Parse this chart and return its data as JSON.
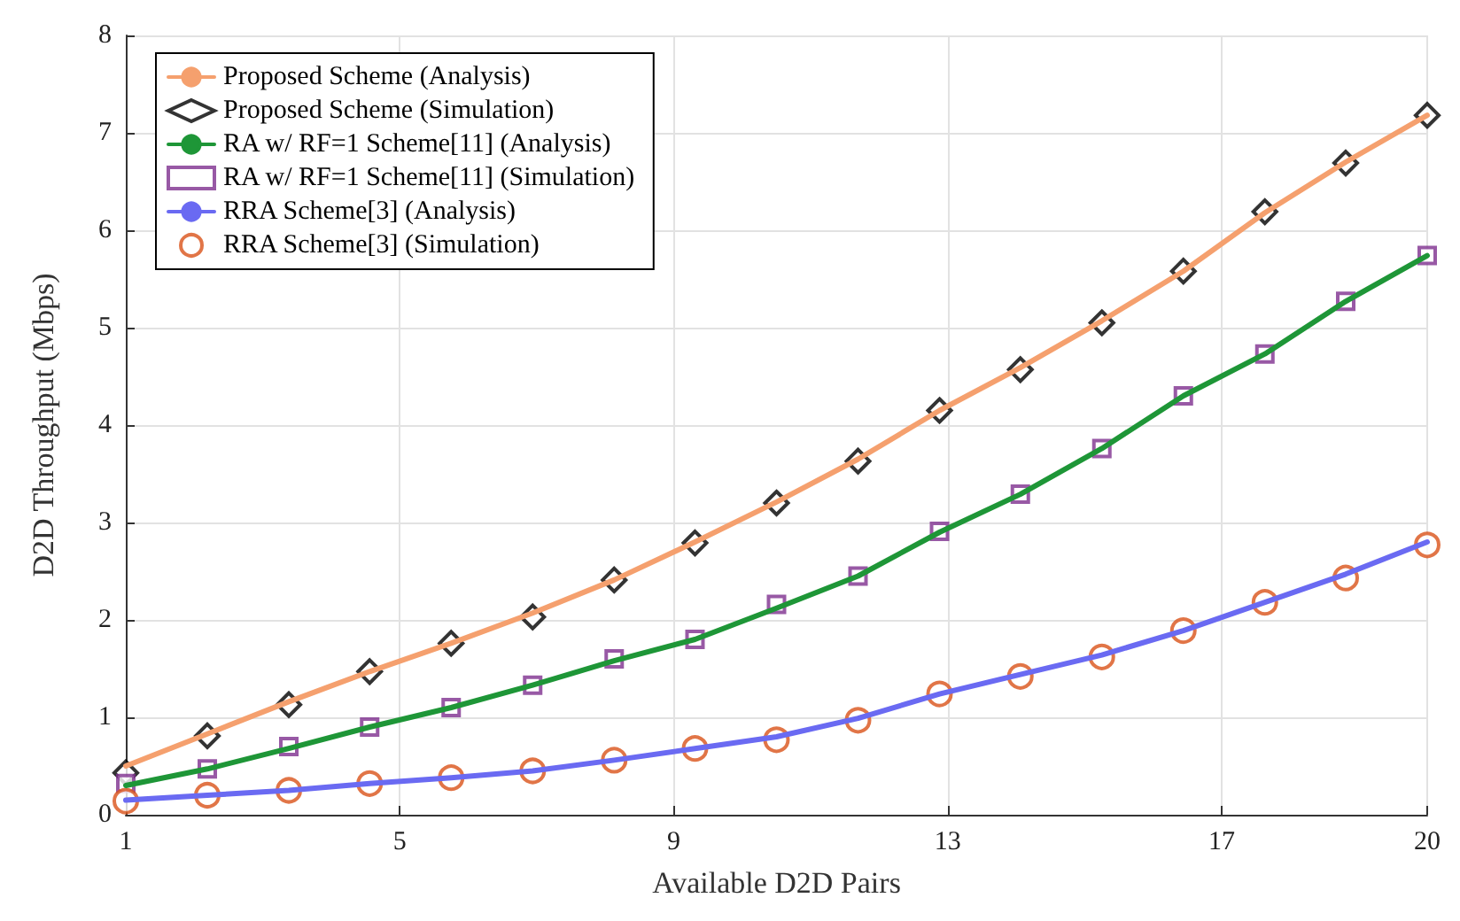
{
  "chart_data": {
    "type": "line",
    "xlabel": "Available D2D Pairs",
    "ylabel": "D2D Throughput (Mbps)",
    "x": [
      1,
      2.19,
      3.38,
      4.56,
      5.75,
      6.94,
      8.13,
      9.31,
      10.5,
      11.69,
      12.88,
      14.06,
      15.25,
      16.44,
      17.63,
      18.81,
      20
    ],
    "series": [
      {
        "name": "Proposed Scheme (Analysis)",
        "marker": "none",
        "color": "#f5a06e",
        "values": [
          0.5,
          0.83,
          1.16,
          1.47,
          1.76,
          2.07,
          2.41,
          2.8,
          3.21,
          3.65,
          4.15,
          4.59,
          5.07,
          5.58,
          6.18,
          6.7,
          7.18
        ]
      },
      {
        "name": "Proposed Scheme (Simulation)",
        "type": "scatter",
        "marker": "diamond",
        "color": "#000000",
        "values": [
          0.43,
          0.81,
          1.13,
          1.47,
          1.76,
          2.03,
          2.41,
          2.79,
          3.2,
          3.63,
          4.15,
          4.57,
          5.05,
          5.58,
          6.19,
          6.69,
          7.18
        ]
      },
      {
        "name": "RA w/ RF=1 Scheme[11] (Analysis)",
        "marker": "none",
        "color": "#1e9637",
        "values": [
          0.3,
          0.47,
          0.68,
          0.9,
          1.1,
          1.33,
          1.58,
          1.8,
          2.12,
          2.45,
          2.9,
          3.29,
          3.76,
          4.3,
          4.73,
          5.27,
          5.74
        ]
      },
      {
        "name": "RA w/ RF=1 Scheme[11] (Simulation)",
        "type": "scatter",
        "marker": "square",
        "color": "#7e2f8e",
        "values": [
          0.32,
          0.47,
          0.7,
          0.9,
          1.1,
          1.33,
          1.6,
          1.8,
          2.16,
          2.45,
          2.91,
          3.29,
          3.76,
          4.3,
          4.73,
          5.27,
          5.74
        ]
      },
      {
        "name": "RRA Scheme[3] (Analysis)",
        "marker": "none",
        "color": "#6a6af2",
        "values": [
          0.15,
          0.2,
          0.25,
          0.32,
          0.38,
          0.45,
          0.56,
          0.68,
          0.8,
          0.99,
          1.24,
          1.44,
          1.64,
          1.89,
          2.18,
          2.47,
          2.8
        ]
      },
      {
        "name": "RRA Scheme[3] (Simulation)",
        "type": "scatter",
        "marker": "circle",
        "color": "#d95319",
        "values": [
          0.14,
          0.2,
          0.25,
          0.32,
          0.38,
          0.45,
          0.56,
          0.68,
          0.77,
          0.97,
          1.24,
          1.42,
          1.62,
          1.89,
          2.18,
          2.43,
          2.77
        ]
      }
    ],
    "xlim": [
      1,
      20
    ],
    "xticks": [
      1,
      5,
      9,
      13,
      17,
      20
    ],
    "ylim": [
      0,
      8
    ],
    "yticks": [
      0,
      1,
      2,
      3,
      4,
      5,
      6,
      7,
      8
    ],
    "grid": true,
    "legend": "top left",
    "line_style": "solid"
  }
}
